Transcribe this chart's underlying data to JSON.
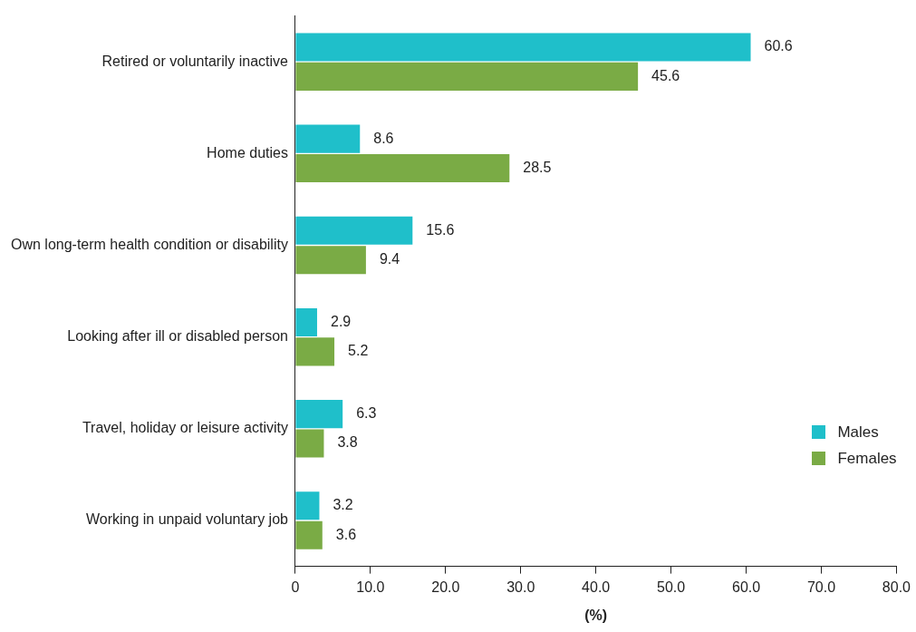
{
  "chart_data": {
    "type": "bar",
    "orientation": "horizontal",
    "categories": [
      "Retired or voluntarily inactive",
      "Home duties",
      "Own long-term health condition or disability",
      "Looking after ill or disabled person",
      "Travel, holiday or leisure activity",
      "Working in unpaid voluntary job"
    ],
    "series": [
      {
        "name": "Males",
        "color": "#1fbfca",
        "values": [
          60.6,
          8.6,
          15.6,
          2.9,
          6.3,
          3.2
        ]
      },
      {
        "name": "Females",
        "color": "#7aab45",
        "values": [
          45.6,
          28.5,
          9.4,
          5.2,
          3.8,
          3.6
        ]
      }
    ],
    "xlabel": "(%)",
    "xlim": [
      0,
      80
    ],
    "xticks": [
      0,
      {
        "value": 10,
        "label": "10.0"
      },
      {
        "value": 20,
        "label": "20.0"
      },
      {
        "value": 30,
        "label": "30.0"
      },
      {
        "value": 40,
        "label": "40.0"
      },
      {
        "value": 50,
        "label": "50.0"
      },
      {
        "value": 60,
        "label": "60.0"
      },
      {
        "value": 70,
        "label": "70.0"
      },
      {
        "value": 80,
        "label": "80.0"
      }
    ],
    "data_labels": true,
    "grid": false,
    "legend": "bottom right"
  }
}
